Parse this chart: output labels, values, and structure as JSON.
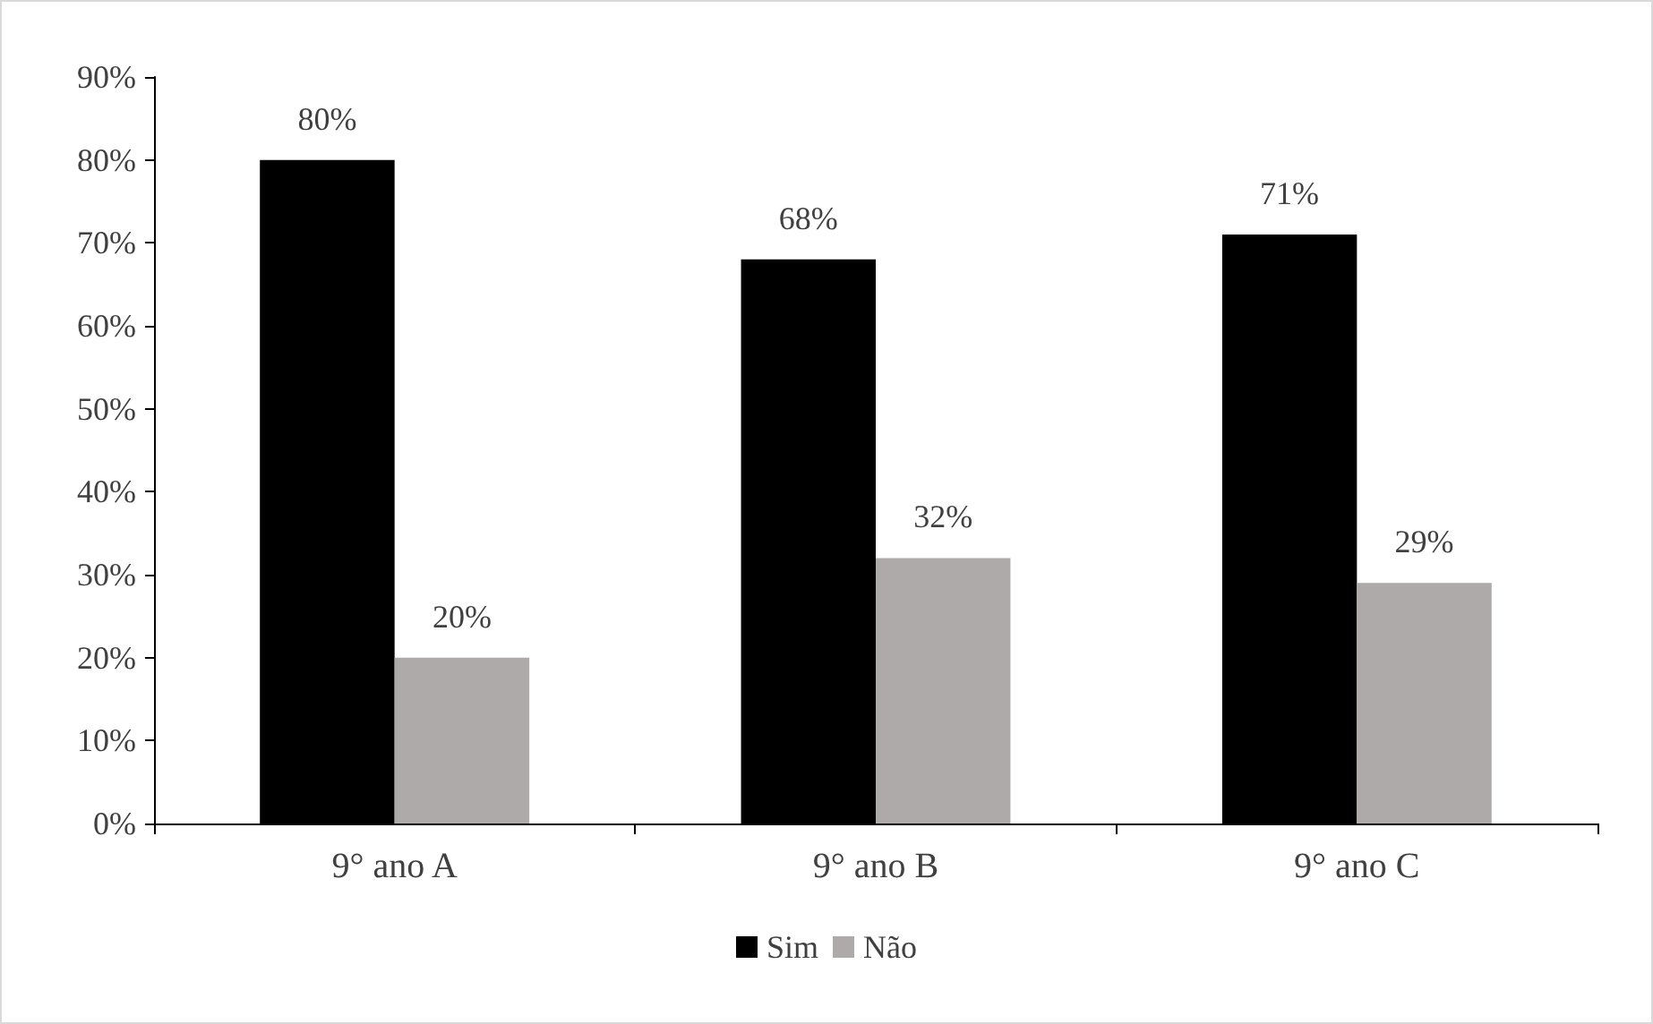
{
  "chart_data": {
    "type": "bar",
    "categories": [
      "9° ano A",
      "9° ano B",
      "9° ano C"
    ],
    "series": [
      {
        "name": "Sim",
        "color": "#000000",
        "values": [
          80,
          68,
          71
        ],
        "value_labels": [
          "80%",
          "68%",
          "71%"
        ]
      },
      {
        "name": "Não",
        "color": "#aeaaaa",
        "values": [
          20,
          32,
          29
        ],
        "value_labels": [
          "20%",
          "32%",
          "29%"
        ]
      }
    ],
    "ylim": [
      0,
      90
    ],
    "yticks": [
      {
        "value": 0,
        "label": "0%"
      },
      {
        "value": 10,
        "label": "10%"
      },
      {
        "value": 20,
        "label": "20%"
      },
      {
        "value": 30,
        "label": "30%"
      },
      {
        "value": 40,
        "label": "40%"
      },
      {
        "value": 50,
        "label": "50%"
      },
      {
        "value": 60,
        "label": "60%"
      },
      {
        "value": 70,
        "label": "70%"
      },
      {
        "value": 80,
        "label": "80%"
      },
      {
        "value": 90,
        "label": "90%"
      }
    ],
    "grid": false,
    "legend": "bottom"
  }
}
